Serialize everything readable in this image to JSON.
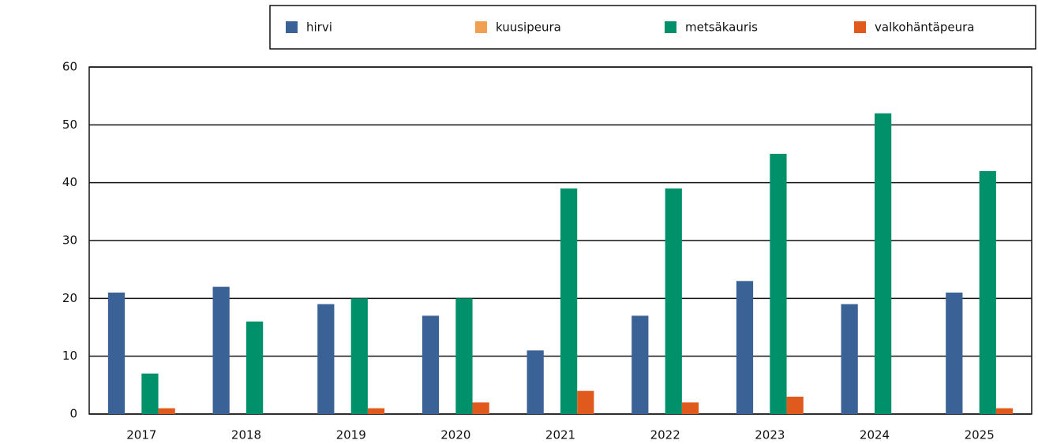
{
  "chart_data": {
    "type": "bar",
    "categories": [
      "2017",
      "2018",
      "2019",
      "2020",
      "2021",
      "2022",
      "2023",
      "2024",
      "2025"
    ],
    "series": [
      {
        "name": "hirvi",
        "color": "#3a6296",
        "values": [
          21,
          22,
          19,
          17,
          11,
          17,
          23,
          19,
          21
        ]
      },
      {
        "name": "kuusipeura",
        "color": "#f0a050",
        "values": [
          0,
          0,
          0,
          0,
          0,
          0,
          0,
          0,
          0
        ]
      },
      {
        "name": "metsäkauris",
        "color": "#00906a",
        "values": [
          7,
          16,
          20,
          20,
          39,
          39,
          45,
          52,
          42
        ]
      },
      {
        "name": "valkohäntäpeura",
        "color": "#e05a1e",
        "values": [
          1,
          0,
          1,
          2,
          4,
          2,
          3,
          0,
          1
        ]
      }
    ],
    "ylim": [
      0,
      60
    ],
    "yticks": [
      0,
      10,
      20,
      30,
      40,
      50,
      60
    ],
    "grid": true,
    "legend": "top"
  }
}
